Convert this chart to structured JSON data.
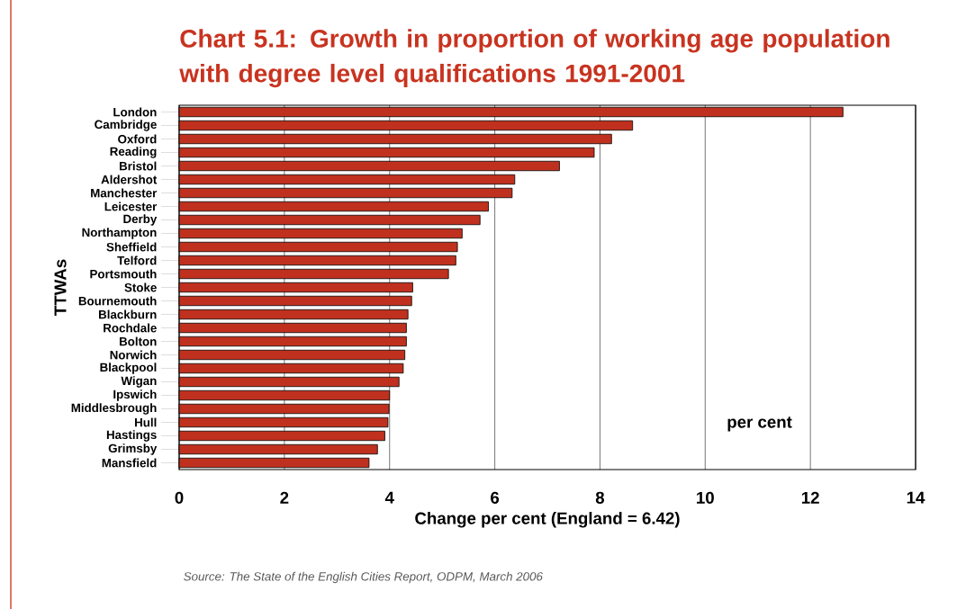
{
  "chart_data": {
    "type": "bar",
    "orientation": "horizontal",
    "title": "Chart 5.1: Growth in proportion of working age population with degree level qualifications 1991-2001",
    "xlabel": "Change per cent (England = 6.42)",
    "ylabel": "TTWAs",
    "annotations": [
      "per cent",
      "Source: The State of the English Cities Report, ODPM, March 2006"
    ],
    "categories": [
      "London",
      "Cambridge",
      "Oxford",
      "Reading",
      "Bristol",
      "Aldershot",
      "Manchester",
      "Leicester",
      "Derby",
      "Northampton",
      "Sheffield",
      "Telford",
      "Portsmouth",
      "Stoke",
      "Bournemouth",
      "Blackburn",
      "Rochdale",
      "Bolton",
      "Norwich",
      "Blackpool",
      "Wigan",
      "Ipswich",
      "Middlesbrough",
      "Hull",
      "Hastings",
      "Grimsby",
      "Mansfield"
    ],
    "values": [
      12.62,
      8.62,
      8.22,
      7.89,
      7.23,
      6.38,
      6.33,
      5.88,
      5.72,
      5.38,
      5.29,
      5.26,
      5.12,
      4.44,
      4.42,
      4.35,
      4.32,
      4.32,
      4.29,
      4.26,
      4.18,
      4.0,
      3.99,
      3.97,
      3.91,
      3.77,
      3.61
    ],
    "color": "#c0301e",
    "xlim": [
      0,
      14
    ],
    "xticks": [
      0,
      2,
      4,
      6,
      8,
      10,
      12,
      14
    ],
    "grid": "x"
  }
}
